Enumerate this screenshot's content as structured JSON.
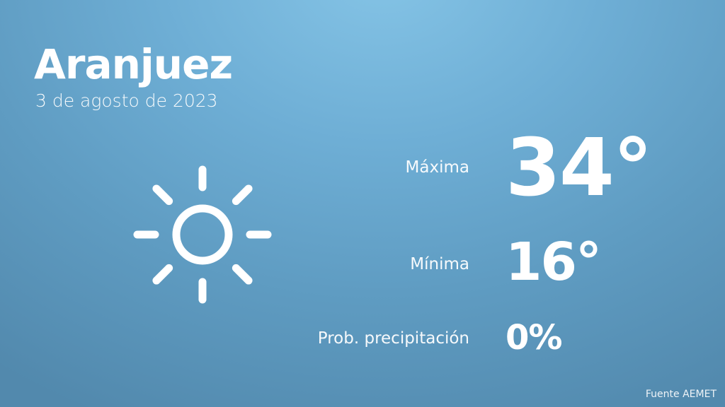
{
  "header": {
    "city": "Aranjuez",
    "date": "3 de agosto de 2023"
  },
  "weather_icon": "sun-icon",
  "forecast": {
    "max_label": "Máxima",
    "max_value": "34°",
    "min_label": "Mínima",
    "min_value": "16°",
    "precip_label": "Prob. precipitación",
    "precip_value": "0%"
  },
  "footer": {
    "source": "Fuente AEMET"
  }
}
